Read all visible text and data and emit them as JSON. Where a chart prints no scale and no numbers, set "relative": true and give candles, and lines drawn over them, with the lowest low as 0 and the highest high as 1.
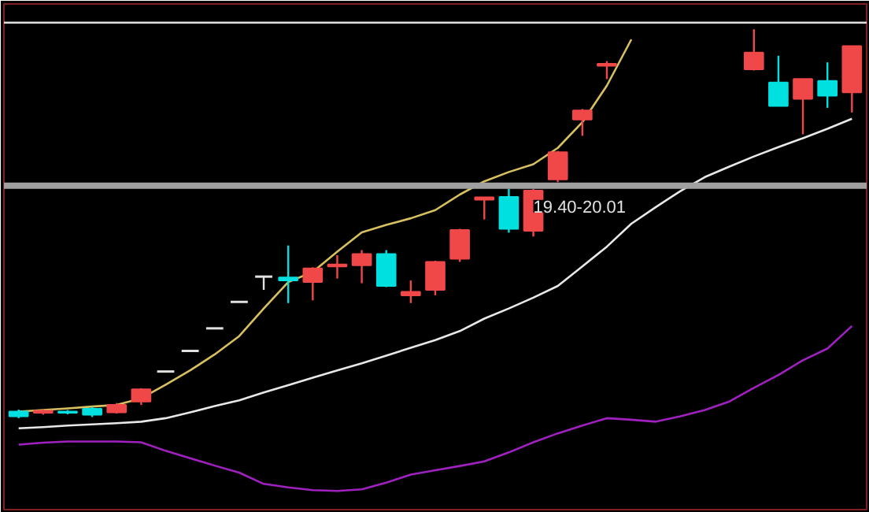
{
  "chart_data": {
    "type": "candlestick",
    "relative": true,
    "categories": [
      null,
      null,
      null,
      null,
      null,
      null,
      null,
      null,
      null,
      null,
      null,
      null,
      null,
      null,
      null,
      null,
      null,
      null,
      null,
      null,
      null,
      null,
      null,
      null,
      null,
      null,
      null,
      null,
      null,
      null,
      null,
      null,
      null,
      null,
      null
    ],
    "ohlc": [
      [
        0.017,
        0.022,
        0,
        0.005
      ],
      [
        0.014,
        0.022,
        0.009,
        0.019
      ],
      [
        0.017,
        0.021,
        0.01,
        0.014
      ],
      [
        0.024,
        0.029,
        0.003,
        0.009
      ],
      [
        0.015,
        0.039,
        0.012,
        0.034
      ],
      [
        0.043,
        0.077,
        0.034,
        0.074
      ],
      [
        0.12,
        0.12,
        0.12,
        0.12
      ],
      [
        0.173,
        0.173,
        0.173,
        0.173
      ],
      [
        0.231,
        0.231,
        0.231,
        0.231
      ],
      [
        0.299,
        0.299,
        0.299,
        0.299
      ],
      [
        0.364,
        0.364,
        0.33,
        0.364
      ],
      [
        0.362,
        0.444,
        0.296,
        0.354
      ],
      [
        0.35,
        0.388,
        0.303,
        0.385
      ],
      [
        0.39,
        0.419,
        0.359,
        0.395
      ],
      [
        0.393,
        0.432,
        0.347,
        0.422
      ],
      [
        0.422,
        0.432,
        0.337,
        0.34
      ],
      [
        0.316,
        0.354,
        0.296,
        0.325
      ],
      [
        0.33,
        0.405,
        0.316,
        0.402
      ],
      [
        0.41,
        0.487,
        0.402,
        0.484
      ],
      [
        0.562,
        0.568,
        0.511,
        0.568
      ],
      [
        0.569,
        0.59,
        0.477,
        0.487
      ],
      [
        0.482,
        0.59,
        0.467,
        0.585
      ],
      [
        0.614,
        0.687,
        0.607,
        0.684
      ],
      [
        0.768,
        0.795,
        0.726,
        0.791
      ],
      [
        0.906,
        0.918,
        0.872,
        0.911
      ],
      null,
      null,
      null,
      null,
      null,
      [
        0.897,
        1,
        0.894,
        0.94
      ],
      [
        0.863,
        0.932,
        0.803,
        0.803
      ],
      [
        0.821,
        0.872,
        0.73,
        0.872
      ],
      [
        0.867,
        0.915,
        0.798,
        0.829
      ],
      [
        0.838,
        0.957,
        0.786,
        0.957
      ]
    ],
    "colors": [
      "#00e0e0",
      "#f04848",
      "#00e0e0",
      "#00e0e0",
      "#f04848",
      "#f04848",
      "#e0e0e0",
      "#e0e0e0",
      "#e0e0e0",
      "#e0e0e0",
      "#e0e0e0",
      "#00e0e0",
      "#f04848",
      "#f04848",
      "#f04848",
      "#00e0e0",
      "#f04848",
      "#f04848",
      "#f04848",
      "#f04848",
      "#00e0e0",
      "#f04848",
      "#f04848",
      "#f04848",
      "#f04848",
      null,
      null,
      null,
      null,
      null,
      "#f04848",
      "#00e0e0",
      "#f04848",
      "#00e0e0",
      "#f04848"
    ],
    "series": [
      {
        "type": "line",
        "color": "#d8c060",
        "values": [
          0.017,
          0.021,
          0.025,
          0.03,
          0.034,
          0.051,
          0.086,
          0.123,
          0.164,
          0.211,
          0.282,
          0.35,
          0.376,
          0.428,
          0.478,
          0.497,
          0.514,
          0.535,
          0.575,
          0.609,
          0.633,
          0.653,
          0.695,
          0.761,
          0.855,
          0.974,
          null,
          null,
          null,
          null,
          null,
          null,
          null,
          null,
          null
        ]
      },
      {
        "type": "line",
        "color": "#e8e8e8",
        "values": [
          -0.026,
          -0.023,
          -0.019,
          -0.016,
          -0.013,
          -0.009,
          0,
          0.015,
          0.031,
          0.046,
          0.066,
          0.085,
          0.104,
          0.123,
          0.141,
          0.161,
          0.181,
          0.201,
          0.224,
          0.256,
          0.282,
          0.31,
          0.34,
          0.39,
          0.441,
          0.5,
          0.543,
          0.584,
          0.62,
          0.647,
          0.673,
          0.697,
          0.72,
          0.744,
          0.77
        ]
      },
      {
        "type": "line",
        "color": "#a020c0",
        "values": [
          -0.068,
          -0.063,
          -0.06,
          -0.06,
          -0.06,
          -0.062,
          -0.084,
          -0.103,
          -0.122,
          -0.14,
          -0.169,
          -0.178,
          -0.185,
          -0.187,
          -0.183,
          -0.166,
          -0.145,
          -0.134,
          -0.123,
          -0.111,
          -0.088,
          -0.062,
          -0.039,
          -0.019,
          0,
          -0.004,
          -0.009,
          0.005,
          0.021,
          0.043,
          0.078,
          0.111,
          0.149,
          0.179,
          0.237
        ]
      }
    ],
    "annotations": [
      "19.40-20.01"
    ],
    "ref_lines": [
      {
        "axis": "y",
        "value": 0.598,
        "color": "#a0a0a0"
      },
      {
        "axis": "y",
        "value": 1.017,
        "color": "#e0e0e0"
      }
    ]
  }
}
